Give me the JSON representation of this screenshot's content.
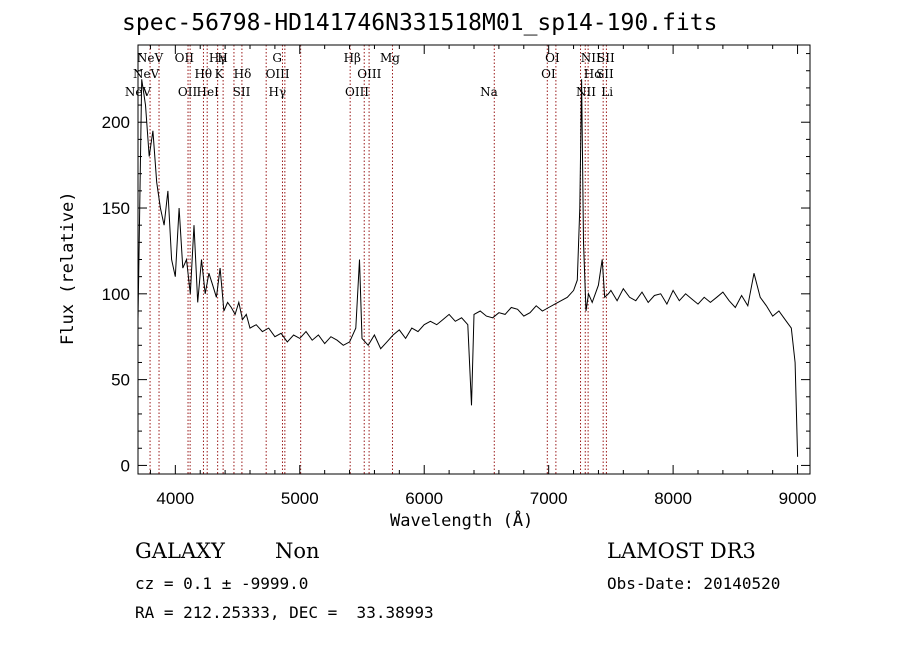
{
  "chart_data": {
    "type": "line",
    "title": "spec-56798-HD141746N331518M01_sp14-190.fits",
    "xlabel": "Wavelength (Å)",
    "ylabel": "Flux (relative)",
    "xlim": [
      3700,
      9100
    ],
    "ylim": [
      -5,
      245
    ],
    "x_ticks": [
      4000,
      5000,
      6000,
      7000,
      8000,
      9000
    ],
    "y_ticks": [
      0,
      50,
      100,
      150,
      200
    ],
    "grid": false,
    "series": [
      {
        "x": [
          3700,
          3730,
          3760,
          3790,
          3820,
          3850,
          3880,
          3910,
          3940,
          3970,
          4000,
          4030,
          4060,
          4090,
          4120,
          4150,
          4180,
          4210,
          4240,
          4270,
          4300,
          4330,
          4360,
          4390,
          4420,
          4450,
          4480,
          4510,
          4540,
          4570,
          4600,
          4650,
          4700,
          4750,
          4800,
          4850,
          4900,
          4950,
          5000,
          5050,
          5100,
          5150,
          5200,
          5250,
          5300,
          5350,
          5400,
          5450,
          5480,
          5500,
          5550,
          5600,
          5650,
          5700,
          5750,
          5800,
          5850,
          5900,
          5950,
          6000,
          6050,
          6100,
          6150,
          6200,
          6250,
          6300,
          6350,
          6380,
          6400,
          6450,
          6500,
          6550,
          6600,
          6650,
          6700,
          6750,
          6800,
          6850,
          6900,
          6950,
          7000,
          7050,
          7100,
          7150,
          7200,
          7230,
          7250,
          7265,
          7280,
          7300,
          7320,
          7350,
          7400,
          7430,
          7450,
          7480,
          7500,
          7550,
          7600,
          7650,
          7700,
          7750,
          7800,
          7850,
          7900,
          7950,
          8000,
          8050,
          8100,
          8150,
          8200,
          8250,
          8300,
          8350,
          8400,
          8450,
          8500,
          8550,
          8600,
          8650,
          8700,
          8750,
          8800,
          8850,
          8900,
          8950,
          8980,
          9000
        ],
        "y": [
          85,
          225,
          210,
          180,
          195,
          165,
          150,
          140,
          160,
          120,
          110,
          150,
          115,
          120,
          100,
          140,
          95,
          120,
          100,
          112,
          105,
          98,
          115,
          90,
          95,
          92,
          88,
          95,
          85,
          88,
          80,
          82,
          78,
          80,
          75,
          77,
          72,
          76,
          74,
          78,
          73,
          76,
          71,
          75,
          73,
          70,
          72,
          80,
          120,
          74,
          70,
          76,
          68,
          72,
          76,
          79,
          74,
          80,
          78,
          82,
          84,
          82,
          85,
          88,
          84,
          86,
          82,
          35,
          88,
          90,
          87,
          86,
          89,
          88,
          92,
          91,
          87,
          89,
          93,
          90,
          92,
          94,
          96,
          98,
          102,
          108,
          150,
          225,
          130,
          90,
          100,
          95,
          105,
          120,
          98,
          100,
          102,
          96,
          103,
          98,
          96,
          101,
          95,
          99,
          100,
          94,
          102,
          96,
          100,
          97,
          94,
          98,
          95,
          98,
          101,
          96,
          92,
          99,
          93,
          112,
          98,
          93,
          87,
          90,
          85,
          80,
          60,
          5
        ]
      }
    ]
  },
  "lines_top": [
    {
      "wl": 3797,
      "label": "NeV"
    },
    {
      "wl": 4072,
      "label": "OII"
    },
    {
      "wl": 4340,
      "label": "Hγ"
    },
    {
      "wl": 4380,
      "label": "H"
    },
    {
      "wl": 4818,
      "label": "G"
    },
    {
      "wl": 5422,
      "label": "Hβ"
    },
    {
      "wl": 5725,
      "label": "Mg"
    },
    {
      "wl": 7030,
      "label": "OI"
    },
    {
      "wl": 7338,
      "label": "NII"
    },
    {
      "wl": 7460,
      "label": "SII"
    }
  ],
  "lines_mid": [
    {
      "wl": 3765,
      "label": "NeV"
    },
    {
      "wl": 4225,
      "label": "Hθ"
    },
    {
      "wl": 4352,
      "label": "K"
    },
    {
      "wl": 4540,
      "label": "Hδ"
    },
    {
      "wl": 4822,
      "label": "OIII"
    },
    {
      "wl": 5559,
      "label": "OIII"
    },
    {
      "wl": 6998,
      "label": "OI"
    },
    {
      "wl": 7357,
      "label": "Hα"
    },
    {
      "wl": 7452,
      "label": "SII"
    }
  ],
  "lines_bottom": [
    {
      "wl": 3700,
      "label": "NeV"
    },
    {
      "wl": 4098,
      "label": "OII"
    },
    {
      "wl": 4260,
      "label": "HeI"
    },
    {
      "wl": 4532,
      "label": "SII"
    },
    {
      "wl": 4820,
      "label": "Hγ"
    },
    {
      "wl": 5460,
      "label": "OIII"
    },
    {
      "wl": 6520,
      "label": "Na"
    },
    {
      "wl": 7300,
      "label": "NII"
    },
    {
      "wl": 7470,
      "label": "Li"
    }
  ],
  "marker_lines": [
    3797,
    3869,
    4102,
    4119,
    4226,
    4256,
    4340,
    4384,
    4471,
    4535,
    4730,
    4861,
    4880,
    5007,
    5405,
    5518,
    5557,
    5745,
    6563,
    6989,
    7058,
    7256,
    7294,
    7317,
    7438,
    7464
  ],
  "info": {
    "class_label": "GALAXY",
    "subclass": "Non",
    "cz": "cz = 0.1 ± -9999.0",
    "radec": "RA = 212.25333, DEC =  33.38993",
    "survey": "LAMOST DR3",
    "obsdate": "Obs-Date: 20140520"
  },
  "colors": {
    "axis": "#000000",
    "spectrum": "#000000",
    "marker": "#9a1a1a"
  }
}
